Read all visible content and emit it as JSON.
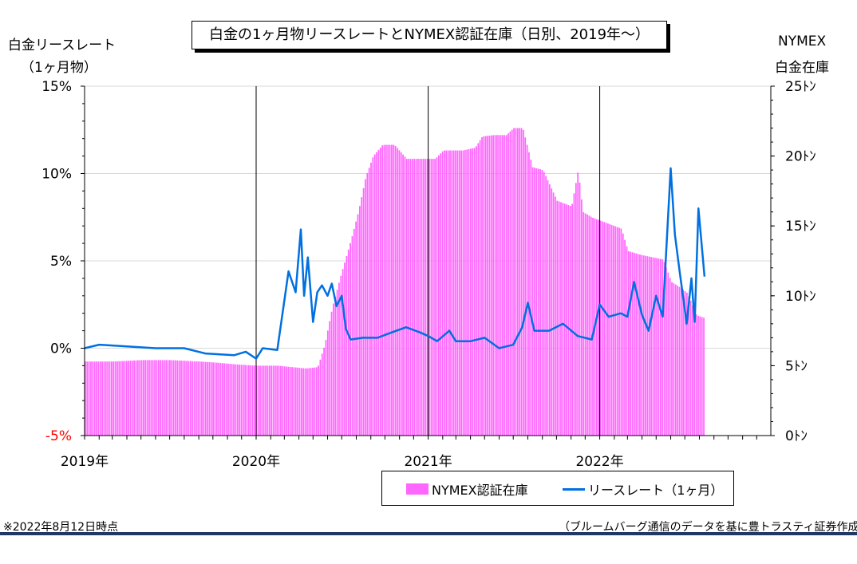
{
  "title": "白金の1ヶ月物リースレートとNYMEX認証在庫（日別、2019年～）",
  "left_axis_label": [
    "白金リースレート",
    "（1ヶ月物）"
  ],
  "right_axis_label": [
    "NYMEX",
    "白金在庫"
  ],
  "note_left": "※2022年8月12日時点",
  "note_right": "（ブルームバーグ通信のデータを基に豊トラスティ証券作成）",
  "legend": {
    "bar_label": "NYMEX認証在庫",
    "line_label": "リースレート（1ヶ月）"
  },
  "colors": {
    "bar": "#ff66ff",
    "line": "#0070e0",
    "neg_tick": "#ff0000",
    "footer_rule": "#1f3864"
  },
  "chart_data": {
    "type": "bar+line",
    "x_axis": {
      "start": "2019-01-01",
      "end": "2022-12-31",
      "tick_labels": [
        "2019年",
        "2020年",
        "2021年",
        "2022年"
      ],
      "tick_dates": [
        "2019-01-01",
        "2020-01-01",
        "2021-01-01",
        "2022-01-01"
      ]
    },
    "y_left": {
      "min": -5,
      "max": 15,
      "ticks": [
        "-5%",
        "0%",
        "5%",
        "10%",
        "15%"
      ],
      "tick_values": [
        -5,
        0,
        5,
        10,
        15
      ]
    },
    "y_right": {
      "min": 0,
      "max": 25,
      "ticks": [
        "0ﾄﾝ",
        "5ﾄﾝ",
        "10ﾄﾝ",
        "15ﾄﾝ",
        "20ﾄﾝ",
        "25ﾄﾝ"
      ],
      "tick_values": [
        0,
        5,
        10,
        15,
        20,
        25
      ]
    },
    "grid": true,
    "year_dividers": true,
    "series": [
      {
        "name": "NYMEX認証在庫",
        "kind": "bar",
        "axis": "right",
        "points": [
          [
            "2019-01-01",
            5.3
          ],
          [
            "2019-03-01",
            5.3
          ],
          [
            "2019-05-01",
            5.4
          ],
          [
            "2019-07-01",
            5.4
          ],
          [
            "2019-09-01",
            5.3
          ],
          [
            "2019-10-15",
            5.2
          ],
          [
            "2019-11-15",
            5.1
          ],
          [
            "2020-01-01",
            5.0
          ],
          [
            "2020-02-15",
            5.0
          ],
          [
            "2020-03-15",
            4.9
          ],
          [
            "2020-04-15",
            4.8
          ],
          [
            "2020-05-10",
            4.9
          ],
          [
            "2020-05-25",
            6.5
          ],
          [
            "2020-06-10",
            9.2
          ],
          [
            "2020-07-01",
            11.8
          ],
          [
            "2020-07-20",
            14.0
          ],
          [
            "2020-08-05",
            16.1
          ],
          [
            "2020-08-20",
            18.5
          ],
          [
            "2020-09-05",
            20.0
          ],
          [
            "2020-09-25",
            20.8
          ],
          [
            "2020-10-20",
            20.8
          ],
          [
            "2020-11-15",
            19.8
          ],
          [
            "2021-01-15",
            19.8
          ],
          [
            "2021-02-01",
            20.4
          ],
          [
            "2021-03-15",
            20.4
          ],
          [
            "2021-04-10",
            20.6
          ],
          [
            "2021-04-25",
            21.4
          ],
          [
            "2021-05-20",
            21.5
          ],
          [
            "2021-06-15",
            21.5
          ],
          [
            "2021-07-01",
            22.0
          ],
          [
            "2021-07-20",
            22.0
          ],
          [
            "2021-08-10",
            19.2
          ],
          [
            "2021-09-01",
            19.0
          ],
          [
            "2021-10-01",
            16.8
          ],
          [
            "2021-11-01",
            16.4
          ],
          [
            "2021-11-15",
            19.0
          ],
          [
            "2021-11-25",
            16.0
          ],
          [
            "2021-12-15",
            15.6
          ],
          [
            "2022-01-15",
            15.2
          ],
          [
            "2022-02-15",
            14.8
          ],
          [
            "2022-03-01",
            13.2
          ],
          [
            "2022-04-01",
            12.9
          ],
          [
            "2022-05-15",
            12.6
          ],
          [
            "2022-06-01",
            11.0
          ],
          [
            "2022-06-20",
            10.6
          ],
          [
            "2022-07-05",
            10.2
          ],
          [
            "2022-07-25",
            8.6
          ],
          [
            "2022-08-12",
            8.4
          ]
        ]
      },
      {
        "name": "リースレート（1ヶ月）",
        "kind": "line",
        "axis": "left",
        "points": [
          [
            "2019-01-01",
            -0.0
          ],
          [
            "2019-02-01",
            0.2
          ],
          [
            "2019-04-01",
            0.1
          ],
          [
            "2019-06-01",
            0.0
          ],
          [
            "2019-08-01",
            0.0
          ],
          [
            "2019-09-15",
            -0.3
          ],
          [
            "2019-11-15",
            -0.4
          ],
          [
            "2019-12-10",
            -0.2
          ],
          [
            "2020-01-01",
            -0.6
          ],
          [
            "2020-01-15",
            0.0
          ],
          [
            "2020-02-15",
            -0.1
          ],
          [
            "2020-03-10",
            4.4
          ],
          [
            "2020-03-25",
            3.2
          ],
          [
            "2020-04-05",
            6.8
          ],
          [
            "2020-04-12",
            3.0
          ],
          [
            "2020-04-20",
            5.2
          ],
          [
            "2020-05-01",
            1.5
          ],
          [
            "2020-05-10",
            3.2
          ],
          [
            "2020-05-20",
            3.6
          ],
          [
            "2020-06-01",
            3.0
          ],
          [
            "2020-06-10",
            3.7
          ],
          [
            "2020-06-20",
            2.4
          ],
          [
            "2020-07-01",
            3.0
          ],
          [
            "2020-07-10",
            1.1
          ],
          [
            "2020-07-20",
            0.5
          ],
          [
            "2020-08-15",
            0.6
          ],
          [
            "2020-09-15",
            0.6
          ],
          [
            "2020-10-15",
            0.9
          ],
          [
            "2020-11-15",
            1.2
          ],
          [
            "2020-12-15",
            0.9
          ],
          [
            "2021-01-01",
            0.7
          ],
          [
            "2021-01-20",
            0.4
          ],
          [
            "2021-02-15",
            1.0
          ],
          [
            "2021-03-01",
            0.4
          ],
          [
            "2021-04-01",
            0.4
          ],
          [
            "2021-05-01",
            0.6
          ],
          [
            "2021-06-01",
            0.0
          ],
          [
            "2021-07-01",
            0.2
          ],
          [
            "2021-07-20",
            1.2
          ],
          [
            "2021-08-01",
            2.6
          ],
          [
            "2021-08-15",
            1.0
          ],
          [
            "2021-09-15",
            1.0
          ],
          [
            "2021-10-15",
            1.4
          ],
          [
            "2021-11-15",
            0.7
          ],
          [
            "2021-12-15",
            0.5
          ],
          [
            "2022-01-01",
            2.5
          ],
          [
            "2022-01-20",
            1.8
          ],
          [
            "2022-02-15",
            2.0
          ],
          [
            "2022-03-01",
            1.8
          ],
          [
            "2022-03-15",
            3.8
          ],
          [
            "2022-04-01",
            1.9
          ],
          [
            "2022-04-15",
            1.0
          ],
          [
            "2022-05-01",
            3.0
          ],
          [
            "2022-05-15",
            1.8
          ],
          [
            "2022-06-01",
            10.3
          ],
          [
            "2022-06-10",
            6.5
          ],
          [
            "2022-06-20",
            4.4
          ],
          [
            "2022-07-05",
            1.4
          ],
          [
            "2022-07-15",
            4.0
          ],
          [
            "2022-07-22",
            1.5
          ],
          [
            "2022-07-30",
            8.0
          ],
          [
            "2022-08-12",
            4.1
          ]
        ]
      }
    ]
  }
}
